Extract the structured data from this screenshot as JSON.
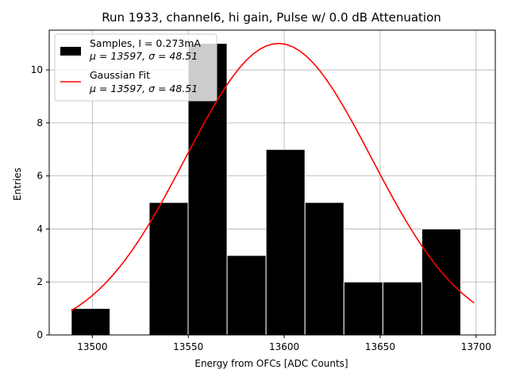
{
  "chart_data": {
    "type": "bar",
    "title": "Run 1933, channel6, hi gain, Pulse w/ 0.0 dB Attenuation",
    "xlabel": "Energy from OFCs [ADC Counts]",
    "ylabel": "Entries",
    "xlim": [
      13477.5,
      13710.0
    ],
    "ylim": [
      0,
      11.5
    ],
    "grid": true,
    "legend_position": "top-left",
    "xticks": [
      13500,
      13550,
      13600,
      13650,
      13700
    ],
    "yticks": [
      0,
      2,
      4,
      6,
      8,
      10
    ],
    "histogram": {
      "name": "Samples, I = 0.273mA",
      "name_line2": "μ = 13597, σ = 48.51",
      "color": "#000000",
      "edgecolor": "#ffffff",
      "bins": [
        {
          "x0": 13489.0,
          "x1": 13509.2,
          "count": 1
        },
        {
          "x0": 13509.2,
          "x1": 13529.6,
          "count": 0
        },
        {
          "x0": 13529.6,
          "x1": 13549.9,
          "count": 5
        },
        {
          "x0": 13549.9,
          "x1": 13570.2,
          "count": 11
        },
        {
          "x0": 13570.2,
          "x1": 13590.5,
          "count": 3
        },
        {
          "x0": 13590.5,
          "x1": 13610.8,
          "count": 7
        },
        {
          "x0": 13610.8,
          "x1": 13631.1,
          "count": 5
        },
        {
          "x0": 13631.1,
          "x1": 13651.4,
          "count": 2
        },
        {
          "x0": 13651.4,
          "x1": 13671.7,
          "count": 2
        },
        {
          "x0": 13671.7,
          "x1": 13692.0,
          "count": 4
        }
      ]
    },
    "fit": {
      "name": "Gaussian Fit",
      "name_line2": "μ = 13597, σ = 48.51",
      "color": "#ff0000",
      "mu": 13597,
      "sigma": 48.51,
      "amplitude": 11.0,
      "x_range": [
        13489,
        13699
      ]
    }
  }
}
